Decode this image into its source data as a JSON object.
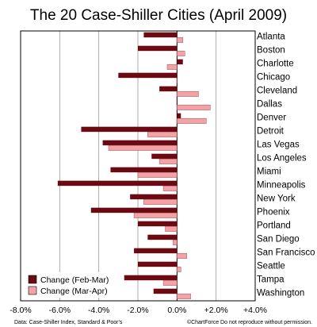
{
  "chart_data": {
    "type": "bar",
    "orientation": "horizontal",
    "title": "The 20 Case-Shiller Cities (April 2009)",
    "categories": [
      "Atlanta",
      "Boston",
      "Charlotte",
      "Chicago",
      "Cleveland",
      "Dallas",
      "Denver",
      "Detroit",
      "Las Vegas",
      "Los Angeles",
      "Miami",
      "Minneapolis",
      "New York",
      "Phoenix",
      "Portland",
      "San Diego",
      "San Francisco",
      "Seattle",
      "Tampa",
      "Washington"
    ],
    "series": [
      {
        "name": "Change (Feb-Mar)",
        "color": "#6b0a12",
        "values": [
          -1.7,
          -2.0,
          0.3,
          -3.0,
          -0.9,
          0.0,
          0.2,
          -4.9,
          -3.8,
          -1.3,
          -3.4,
          -6.1,
          -2.4,
          -4.4,
          -2.0,
          -1.5,
          -2.2,
          -2.0,
          -2.7,
          -1.2
        ]
      },
      {
        "name": "Change (Mar-Apr)",
        "color": "#f3a3a6",
        "values": [
          0.3,
          0.4,
          -0.5,
          0.0,
          1.1,
          1.7,
          1.5,
          -1.5,
          -3.5,
          -0.9,
          -2.0,
          -0.7,
          -1.7,
          -2.2,
          -0.6,
          -0.2,
          0.5,
          0.2,
          -0.7,
          0.7
        ]
      }
    ],
    "xlim": [
      -8.0,
      4.0
    ],
    "xticks": [
      "-8.0%",
      "-6.0%",
      "-4.0%",
      "-2.0%",
      "0.0%",
      "+2.0%",
      "+4.0%"
    ],
    "grid": true,
    "legend_position": "bottom-left",
    "source": "Data: Case-Shiller Index, Standard & Poor's",
    "credit": "©ChartForce  Do not reproduce without permission."
  }
}
